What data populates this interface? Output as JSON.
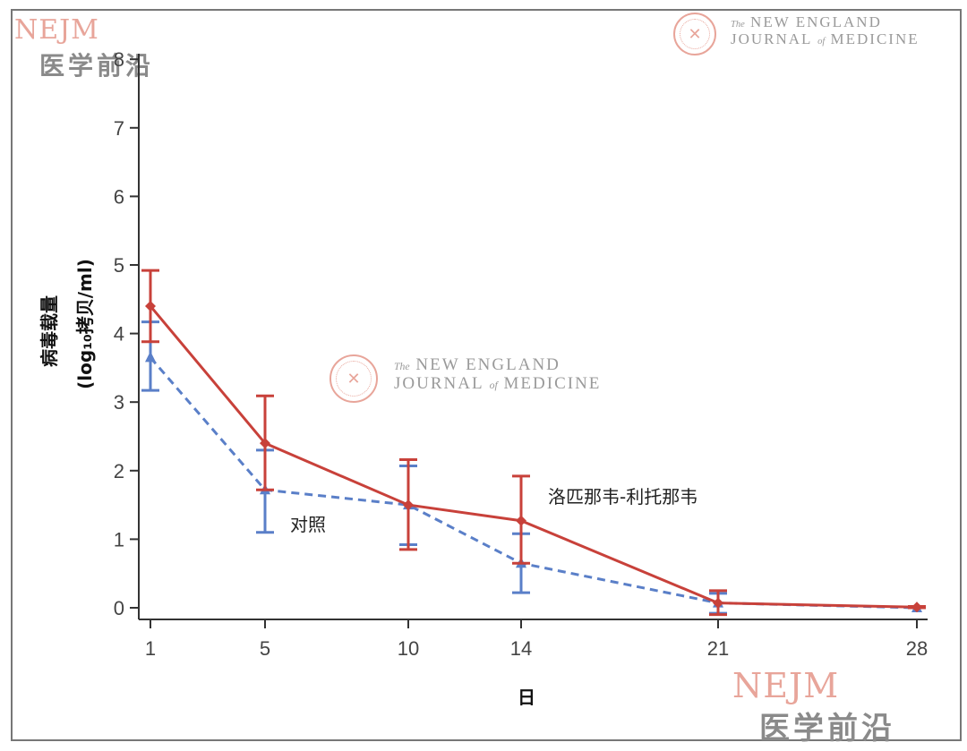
{
  "watermarks": {
    "nejm_logo": "NEJM",
    "cn_brand": "医学前沿",
    "journal_line1_small": "The",
    "journal_line1": "NEW ENGLAND",
    "journal_line2a": "JOURNAL",
    "journal_line2_small": "of",
    "journal_line2b": "MEDICINE"
  },
  "colors": {
    "lopinavir": "#c8413a",
    "control": "#5a7fc8",
    "axis": "#333333",
    "tick_text": "#444444"
  },
  "chart_data": {
    "type": "line",
    "xlabel": "日",
    "ylabel_line1": "病毒载量",
    "ylabel_line2": "(log₁₀拷贝/ml)",
    "x": [
      1,
      5,
      10,
      14,
      21,
      28
    ],
    "xticks": [
      "1",
      "5",
      "10",
      "14",
      "21",
      "28"
    ],
    "yticks": [
      "0",
      "1",
      "2",
      "3",
      "4",
      "5",
      "6",
      "7",
      "8"
    ],
    "ylim": [
      0,
      8
    ],
    "xscale": "categorical-positioned",
    "series": [
      {
        "name": "洛匹那韦-利托那韦",
        "style": "solid",
        "marker": "diamond",
        "values": [
          4.4,
          2.4,
          1.5,
          1.27,
          0.07,
          0.01
        ],
        "err_low": [
          3.88,
          1.72,
          0.85,
          0.65,
          -0.1,
          0.0
        ],
        "err_high": [
          4.92,
          3.09,
          2.16,
          1.92,
          0.25,
          0.02
        ]
      },
      {
        "name": "对照",
        "style": "dashed",
        "marker": "triangle",
        "values": [
          3.65,
          1.72,
          1.5,
          0.65,
          0.07,
          0.0
        ],
        "err_low": [
          3.17,
          1.1,
          0.92,
          0.22,
          -0.08,
          0.0
        ],
        "err_high": [
          4.17,
          2.3,
          2.07,
          1.08,
          0.21,
          0.01
        ]
      }
    ]
  }
}
